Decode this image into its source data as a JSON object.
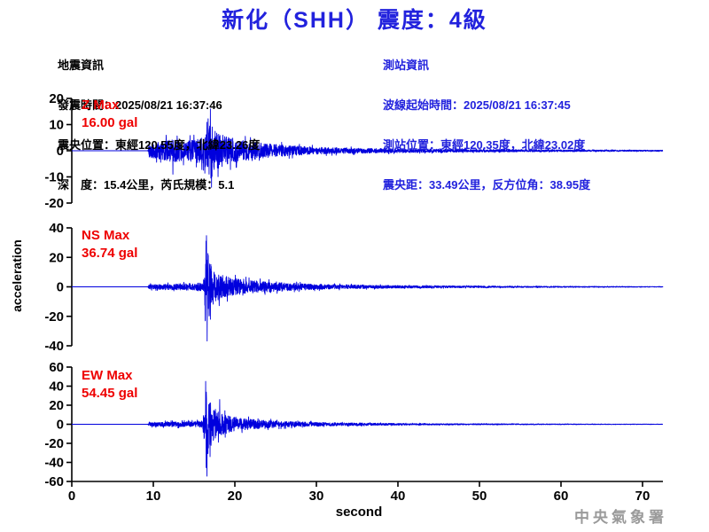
{
  "header": {
    "title": "新化（SHH） 震度：4級"
  },
  "earthquake_info": {
    "heading": "地震資訊",
    "lines": [
      "發震時間：2025/08/21 16:37:46",
      "震央位置：東經120.55度，北緯23.26度",
      "深　度：15.4公里，芮氏規模：5.1"
    ]
  },
  "station_info": {
    "heading": "測站資訊",
    "lines": [
      "波線起始時間：2025/08/21 16:37:45",
      "測站位置：東經120.35度，北緯23.02度",
      "震央距：33.49公里，反方位角：38.95度"
    ]
  },
  "watermark": "中央氣象署",
  "colors": {
    "title_blue": "#2222dd",
    "info_blue": "#2222dd",
    "label_red": "#ee0000",
    "trace_blue": "#0000dd",
    "axis_black": "#000000",
    "watermark_gray": "#9a9a9a"
  },
  "chart_data": {
    "type": "line",
    "xlabel": "second",
    "ylabel": "acceleration",
    "x_range": [
      0,
      72.5
    ],
    "x_ticks": [
      0,
      10,
      20,
      30,
      40,
      50,
      60,
      70
    ],
    "grid": false,
    "series": [
      {
        "name": "Z",
        "label": "Z Max",
        "max_label": "16.00 gal",
        "max_gal": 16.0,
        "ylim": [
          -20,
          20
        ],
        "yticks": [
          20,
          10,
          0,
          -10,
          -20
        ],
        "p_arrival_s": 9.5,
        "s_arrival_s": 16.4,
        "envelope": [
          [
            0,
            0
          ],
          [
            9.3,
            0
          ],
          [
            9.5,
            3.5
          ],
          [
            10.5,
            4.5
          ],
          [
            12,
            6.5
          ],
          [
            13.5,
            5.5
          ],
          [
            15,
            6
          ],
          [
            16.2,
            7.5
          ],
          [
            16.7,
            12
          ],
          [
            17.05,
            16
          ],
          [
            17.5,
            11
          ],
          [
            18.5,
            8.5
          ],
          [
            20,
            6.5
          ],
          [
            22,
            5
          ],
          [
            24,
            3.8
          ],
          [
            27,
            2.8
          ],
          [
            30,
            2
          ],
          [
            34,
            1.5
          ],
          [
            40,
            1.1
          ],
          [
            48,
            0.8
          ],
          [
            56,
            0.6
          ],
          [
            64,
            0.45
          ],
          [
            72.5,
            0.3
          ]
        ],
        "peaks": [
          [
            17.0,
            16.0
          ],
          [
            17.15,
            -14.0
          ],
          [
            12.4,
            -9.0
          ]
        ]
      },
      {
        "name": "NS",
        "label": "NS Max",
        "max_label": "36.74 gal",
        "max_gal": 36.74,
        "ylim": [
          -40,
          40
        ],
        "yticks": [
          40,
          20,
          0,
          -20,
          -40
        ],
        "p_arrival_s": 9.5,
        "s_arrival_s": 16.4,
        "envelope": [
          [
            0,
            0
          ],
          [
            9.3,
            0
          ],
          [
            9.5,
            2.2
          ],
          [
            11,
            2.6
          ],
          [
            13,
            3
          ],
          [
            15,
            3.4
          ],
          [
            16.1,
            4.5
          ],
          [
            16.35,
            22
          ],
          [
            16.55,
            37
          ],
          [
            16.85,
            28
          ],
          [
            17.3,
            17
          ],
          [
            18,
            13
          ],
          [
            19,
            10
          ],
          [
            20,
            8
          ],
          [
            21.5,
            6.5
          ],
          [
            23,
            5.5
          ],
          [
            25,
            4.5
          ],
          [
            27,
            3.5
          ],
          [
            29,
            2.8
          ],
          [
            32,
            2.2
          ],
          [
            36,
            1.7
          ],
          [
            40,
            1.3
          ],
          [
            46,
            1
          ],
          [
            54,
            0.7
          ],
          [
            62,
            0.5
          ],
          [
            72.5,
            0.3
          ]
        ],
        "peaks": [
          [
            16.45,
            31.0
          ],
          [
            16.6,
            -36.74
          ],
          [
            17.0,
            -22.0
          ]
        ]
      },
      {
        "name": "EW",
        "label": "EW Max",
        "max_label": "54.45 gal",
        "max_gal": 54.45,
        "ylim": [
          -60,
          60
        ],
        "yticks": [
          60,
          40,
          20,
          0,
          -20,
          -40,
          -60
        ],
        "p_arrival_s": 9.5,
        "s_arrival_s": 16.4,
        "envelope": [
          [
            0,
            0
          ],
          [
            9.3,
            0
          ],
          [
            9.5,
            3
          ],
          [
            11,
            3.4
          ],
          [
            13,
            3.8
          ],
          [
            15,
            4.2
          ],
          [
            16.05,
            5
          ],
          [
            16.3,
            30
          ],
          [
            16.5,
            52
          ],
          [
            16.8,
            42
          ],
          [
            17.2,
            28
          ],
          [
            17.8,
            20
          ],
          [
            18.6,
            15
          ],
          [
            19.6,
            11
          ],
          [
            21,
            8.5
          ],
          [
            23,
            6.5
          ],
          [
            25,
            5
          ],
          [
            27,
            4
          ],
          [
            30,
            3
          ],
          [
            33,
            2.2
          ],
          [
            37,
            1.7
          ],
          [
            42,
            1.2
          ],
          [
            48,
            0.9
          ],
          [
            56,
            0.6
          ],
          [
            64,
            0.45
          ],
          [
            72.5,
            0.3
          ]
        ],
        "peaks": [
          [
            16.42,
            45.0
          ],
          [
            16.58,
            -54.45
          ],
          [
            16.95,
            -34.0
          ],
          [
            18.15,
            26.0
          ]
        ]
      }
    ]
  }
}
